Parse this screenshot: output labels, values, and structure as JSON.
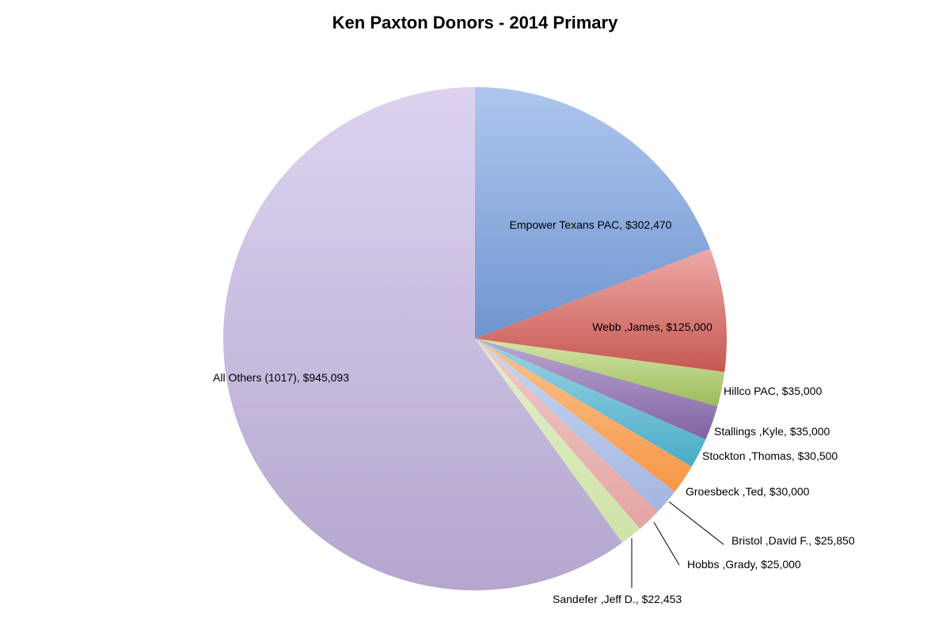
{
  "chart_data": {
    "type": "pie",
    "title": "Ken Paxton Donors - 2014 Primary",
    "slices": [
      {
        "label": "Empower Texans PAC,  $302,470",
        "name": "Empower Texans PAC",
        "value": 302470,
        "color": "#6f95cf",
        "color_light": "#aec6ef"
      },
      {
        "label": "Webb ,James,  $125,000",
        "name": "Webb ,James",
        "value": 125000,
        "color": "#c65751",
        "color_light": "#eeaaa7"
      },
      {
        "label": "Hillco PAC,  $35,000",
        "name": "Hillco PAC",
        "value": 35000,
        "color": "#9bbb59",
        "color_light": "#d3e5a9"
      },
      {
        "label": "Stallings ,Kyle,  $35,000",
        "name": "Stallings ,Kyle",
        "value": 35000,
        "color": "#8064a2",
        "color_light": "#b9a7d1"
      },
      {
        "label": "Stockton ,Thomas,  $30,500",
        "name": "Stockton ,Thomas",
        "value": 30500,
        "color": "#4bacc6",
        "color_light": "#9bd4e6"
      },
      {
        "label": "Groesbeck ,Ted,  $30,000",
        "name": "Groesbeck ,Ted",
        "value": 30000,
        "color": "#f79646",
        "color_light": "#fbc48f"
      },
      {
        "label": "Bristol ,David F.,  $25,850",
        "name": "Bristol ,David F.",
        "value": 25850,
        "color": "#a3b6e0",
        "color_light": "#c9d7f1"
      },
      {
        "label": "Hobbs ,Grady,  $25,000",
        "name": "Hobbs ,Grady",
        "value": 25000,
        "color": "#e2a5a3",
        "color_light": "#f1c8c7"
      },
      {
        "label": "Sandefer ,Jeff D.,  $22,453",
        "name": "Sandefer ,Jeff D.",
        "value": 22453,
        "color": "#cfe2a8",
        "color_light": "#e4efca"
      },
      {
        "label": "All Others (1017),  $945,093",
        "name": "All Others (1017)",
        "value": 945093,
        "color": "#b4a6ce",
        "color_light": "#dcd3f0"
      }
    ]
  }
}
